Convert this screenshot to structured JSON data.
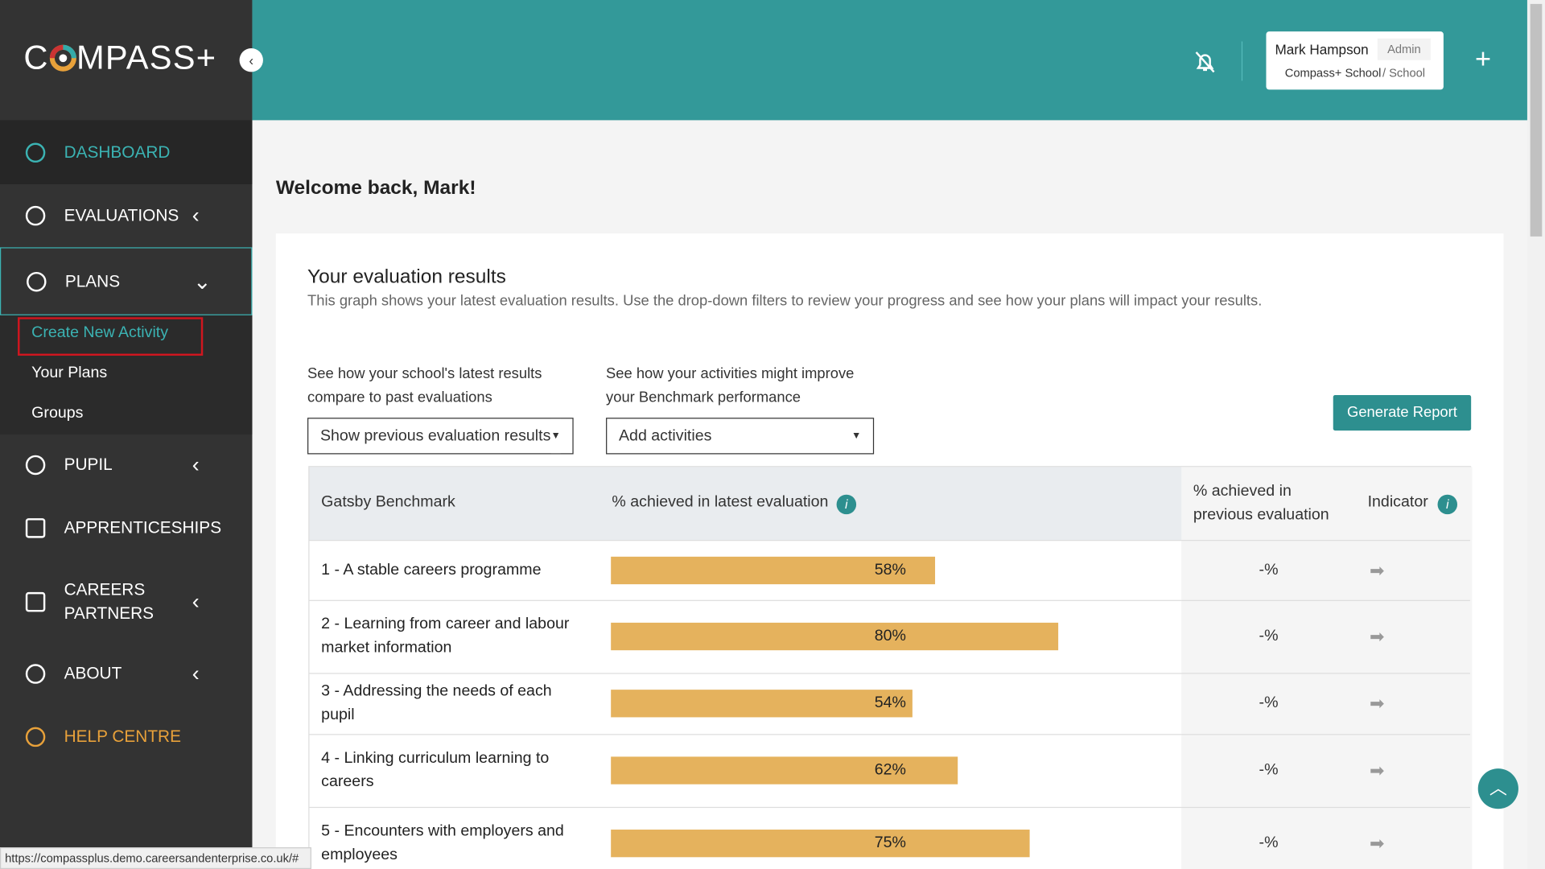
{
  "logo": {
    "left": "C",
    "right": "MPASS+"
  },
  "nav": [
    {
      "label": "DASHBOARD"
    },
    {
      "label": "EVALUATIONS"
    },
    {
      "label": "PLANS"
    },
    {
      "label": "PUPIL"
    },
    {
      "label": "APPRENTICESHIPS"
    },
    {
      "label": "CAREERS PARTNERS"
    },
    {
      "label": "ABOUT"
    },
    {
      "label": "HELP CENTRE"
    }
  ],
  "subnav": [
    "Create New Activity",
    "Your Plans",
    "Groups"
  ],
  "user": {
    "name": "Mark Hampson",
    "role": "Admin",
    "school": "Compass+ School",
    "school_type": "/ School"
  },
  "welcome": "Welcome back, Mark!",
  "card": {
    "title": "Your evaluation results",
    "description": "This graph shows your latest evaluation results. Use the drop-down filters to review your progress and see how your plans will impact your results.",
    "filter1_label": "See how your school's latest results compare to past evaluations",
    "filter1_value": "Show previous evaluation results",
    "filter2_label": "See how your activities might improve your Benchmark performance",
    "filter2_value": "Add activities",
    "button": "Generate Report"
  },
  "table": {
    "headers": [
      "Gatsby Benchmark",
      "% achieved in latest evaluation",
      "% achieved in previous evaluation",
      "Indicator"
    ],
    "rows": [
      {
        "benchmark": "1 - A stable careers programme",
        "value": 58,
        "value_label": "58%",
        "previous": "-%"
      },
      {
        "benchmark": "2 - Learning from career and labour market information",
        "value": 80,
        "value_label": "80%",
        "previous": "-%"
      },
      {
        "benchmark": "3 - Addressing the needs of each pupil",
        "value": 54,
        "value_label": "54%",
        "previous": "-%"
      },
      {
        "benchmark": "4 - Linking curriculum learning to careers",
        "value": 62,
        "value_label": "62%",
        "previous": "-%"
      },
      {
        "benchmark": "5 - Encounters with employers and employees",
        "value": 75,
        "value_label": "75%",
        "previous": "-%"
      }
    ]
  },
  "status_url": "https://compassplus.demo.careersandenterprise.co.uk/#"
}
